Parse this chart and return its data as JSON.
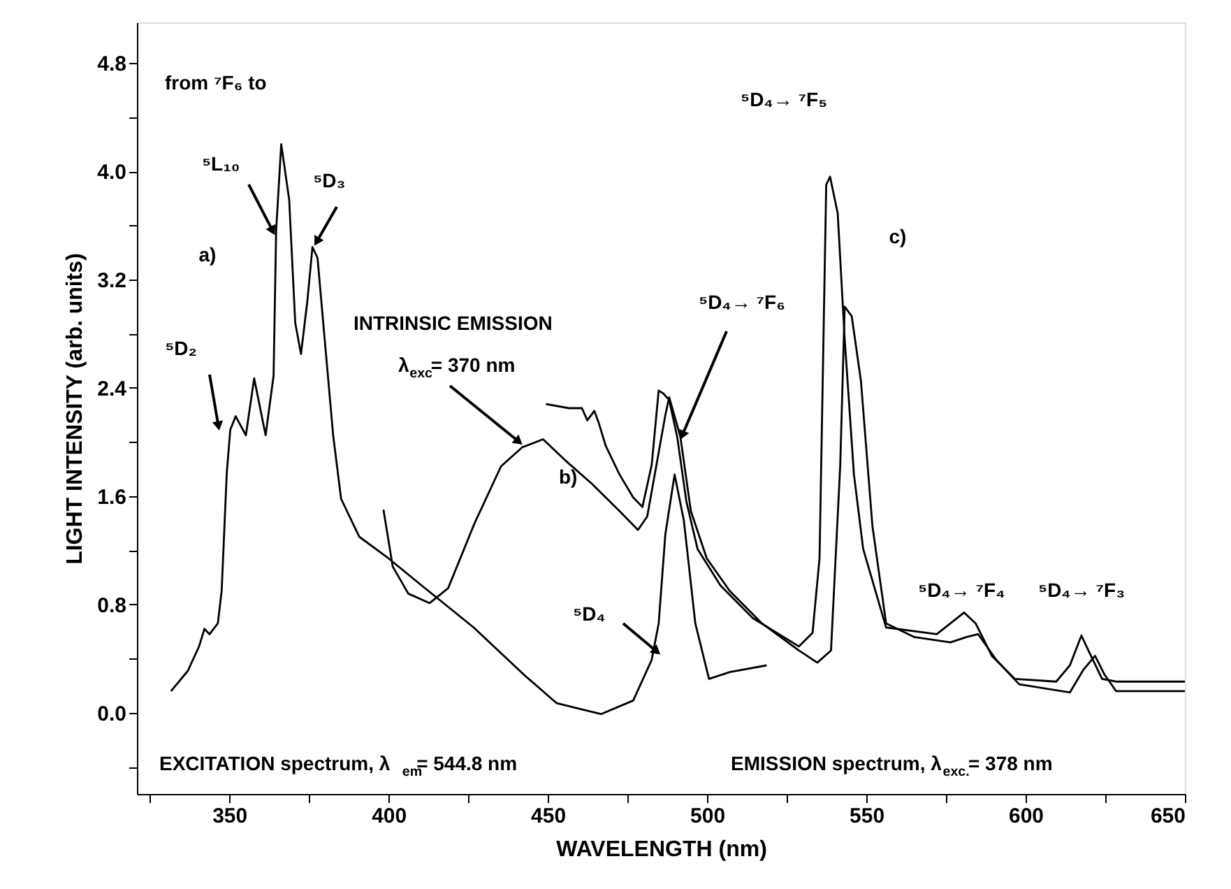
{
  "chart_data": {
    "type": "line",
    "xlabel": "WAVELENGTH (nm)",
    "ylabel": "LIGHT INTENSITY (arb. units)",
    "xlim": [
      321,
      650
    ],
    "ylim": [
      -0.6,
      5.1
    ],
    "xticks": [
      {
        "value": 325,
        "label": null
      },
      350,
      {
        "value": 375,
        "label": null
      },
      400,
      {
        "value": 425,
        "label": null
      },
      450,
      {
        "value": 475,
        "label": null
      },
      500,
      {
        "value": 525,
        "label": null
      },
      550,
      {
        "value": 575,
        "label": null
      },
      600,
      {
        "value": 625,
        "label": null
      },
      650
    ],
    "yticks": [
      {
        "value": -0.4,
        "label": null
      },
      {
        "value": 0,
        "label": "0.0"
      },
      {
        "value": 0.4,
        "label": null
      },
      {
        "value": 0.8,
        "label": "0.8"
      },
      {
        "value": 1.2,
        "label": null
      },
      {
        "value": 1.6,
        "label": "1.6"
      },
      {
        "value": 2.0,
        "label": null
      },
      {
        "value": 2.4,
        "label": "2.4"
      },
      {
        "value": 2.8,
        "label": null
      },
      {
        "value": 3.2,
        "label": "3.2"
      },
      {
        "value": 3.6,
        "label": null
      },
      {
        "value": 4.0,
        "label": "4.0"
      },
      {
        "value": 4.4,
        "label": null
      },
      {
        "value": 4.8,
        "label": "4.8"
      }
    ],
    "grid": false,
    "marker": "none",
    "line_style": "solid",
    "series": [
      {
        "color": "#000000",
        "x": [
          331.7,
          337,
          340.5,
          342.2,
          343.8,
          346.4,
          347.6,
          349.2,
          350.3,
          352,
          355.2,
          357.8,
          361.4,
          363.9,
          364.7,
          366.3,
          368.8,
          370.7,
          372.5,
          374.5,
          376.1,
          377.7,
          380.2,
          382.6,
          385.1,
          390.8,
          400,
          410.4,
          426.7,
          443,
          452.8,
          466.7,
          476.8,
          482.6,
          484.8,
          486.9,
          489.8,
          492.7,
          496.3,
          500.6,
          507.1,
          518.7
        ],
        "values": [
          0.16,
          0.31,
          0.49,
          0.62,
          0.58,
          0.66,
          0.9,
          1.77,
          2.09,
          2.19,
          2.05,
          2.47,
          2.05,
          2.49,
          3.56,
          4.2,
          3.79,
          2.88,
          2.65,
          3.04,
          3.44,
          3.36,
          2.69,
          2.05,
          1.58,
          1.3,
          1.14,
          0.94,
          0.63,
          0.27,
          0.07,
          -0.01,
          0.09,
          0.39,
          0.66,
          1.32,
          1.76,
          1.42,
          0.66,
          0.25,
          0.3,
          0.35
        ]
      },
      {
        "color": "#000000",
        "x": [
          398.4,
          401.3,
          406.2,
          412.9,
          418.7,
          427,
          435.3,
          441.9,
          448.5,
          455.2,
          463.9,
          472.5,
          478.3,
          481.2,
          484.1,
          486.9,
          488.1,
          491.6,
          494.9,
          499.9,
          507.1,
          517.2,
          528.8,
          534.6,
          538.9,
          541.8,
          543.2,
          545.4,
          548.3,
          551.9,
          556.2,
          564.9,
          576.4,
          581.5,
          585.1,
          590.8,
          598,
          613.9,
          618.2,
          621.8,
          624.8,
          628.4,
          650
        ],
        "values": [
          1.5,
          1.08,
          0.88,
          0.81,
          0.92,
          1.4,
          1.82,
          1.96,
          2.02,
          1.87,
          1.69,
          1.49,
          1.35,
          1.45,
          1.83,
          2.2,
          2.33,
          2.04,
          1.49,
          1.14,
          0.9,
          0.66,
          0.46,
          0.37,
          0.46,
          1.83,
          3.0,
          2.93,
          2.45,
          1.38,
          0.66,
          0.56,
          0.52,
          0.56,
          0.58,
          0.39,
          0.21,
          0.15,
          0.32,
          0.42,
          0.28,
          0.16,
          0.16
        ]
      },
      {
        "color": "#000000",
        "x": [
          449.4,
          456.6,
          460.7,
          462.4,
          464.6,
          466,
          468.2,
          472.5,
          476.8,
          479.7,
          482.6,
          484.8,
          486.2,
          488.1,
          490.6,
          493.5,
          497,
          504.2,
          514.3,
          528.8,
          533.1,
          535.3,
          537.4,
          538.6,
          541,
          543.2,
          546.1,
          549,
          556.2,
          572.1,
          576.4,
          580.7,
          584.3,
          589.4,
          596.6,
          609.6,
          613.9,
          617.5,
          619.7,
          624,
          628.4,
          650
        ],
        "values": [
          2.28,
          2.25,
          2.25,
          2.16,
          2.23,
          2.14,
          1.97,
          1.76,
          1.59,
          1.52,
          1.83,
          2.38,
          2.36,
          2.31,
          2.04,
          1.56,
          1.21,
          0.94,
          0.7,
          0.49,
          0.59,
          1.14,
          3.9,
          3.96,
          3.69,
          2.76,
          1.76,
          1.21,
          0.63,
          0.58,
          0.66,
          0.74,
          0.66,
          0.42,
          0.25,
          0.23,
          0.35,
          0.57,
          0.46,
          0.25,
          0.23,
          0.23
        ]
      }
    ],
    "annotations": [
      "from ⁷F₆ to",
      {
        "text": "⁵L₁₀",
        "x": 363.4,
        "y": 3.57
      },
      {
        "text": "⁵D₃",
        "x": 377.7,
        "y": 3.49
      },
      "a)",
      {
        "text": "⁵D₂",
        "x": 346.5,
        "y": 2.13
      },
      "INTRINSIC EMISSION",
      {
        "text": "λ$_{exc}$= 370 nm",
        "x": 440.5,
        "y": 2.01
      },
      "b)",
      {
        "text": "⁵D₄→ ⁷F₆",
        "x": 492.4,
        "y": 2.06
      },
      "⁵D₄→ ⁷F₅",
      "c)",
      {
        "text": "⁵D₄",
        "x": 483.8,
        "y": 0.46
      },
      "⁵D₄→ ⁷F₄",
      "⁵D₄→ ⁷F₃",
      "EXCITATION spectrum,  λ$_{em}$= 544.8 nm",
      "EMISSION spectrum, λ$_{exc.}$= 378 nm"
    ]
  }
}
